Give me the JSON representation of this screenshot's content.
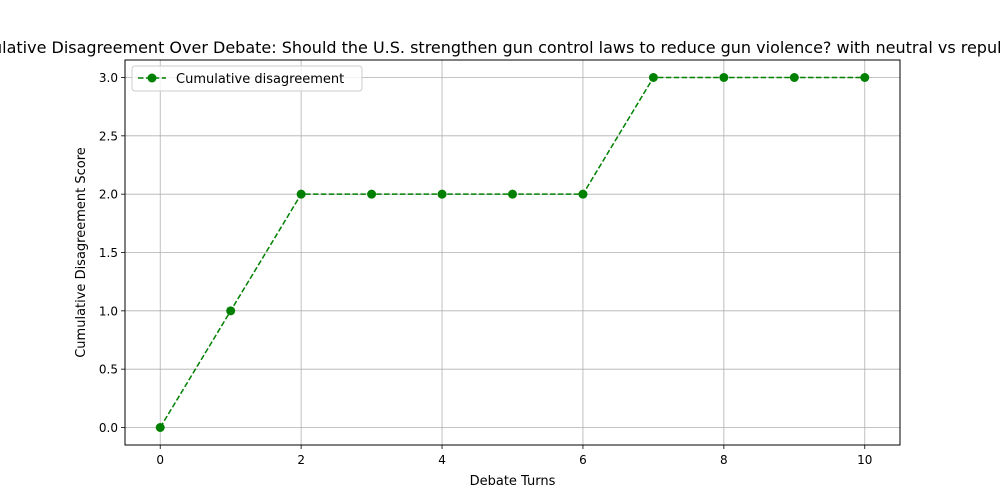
{
  "chart_data": {
    "type": "line",
    "title": "Cumulative Disagreement Over Debate: Should the U.S. strengthen gun control laws to reduce gun violence? with neutral vs republican",
    "xlabel": "Debate Turns",
    "ylabel": "Cumulative Disagreement Score",
    "xlim": [
      -0.5,
      10.5
    ],
    "ylim": [
      -0.15,
      3.15
    ],
    "xticks": [
      0,
      2,
      4,
      6,
      8,
      10
    ],
    "xtick_labels": [
      "0",
      "2",
      "4",
      "6",
      "8",
      "10"
    ],
    "yticks": [
      0.0,
      0.5,
      1.0,
      1.5,
      2.0,
      2.5,
      3.0
    ],
    "ytick_labels": [
      "0.0",
      "0.5",
      "1.0",
      "1.5",
      "2.0",
      "2.5",
      "3.0"
    ],
    "grid": true,
    "legend_position": "upper-left",
    "series": [
      {
        "name": "Cumulative disagreement",
        "color": "#008000",
        "line_style": "dashed",
        "marker": "circle",
        "x": [
          0,
          1,
          2,
          3,
          4,
          5,
          6,
          7,
          8,
          9,
          10
        ],
        "y": [
          0,
          1,
          2,
          2,
          2,
          2,
          2,
          3,
          3,
          3,
          3
        ]
      }
    ]
  }
}
